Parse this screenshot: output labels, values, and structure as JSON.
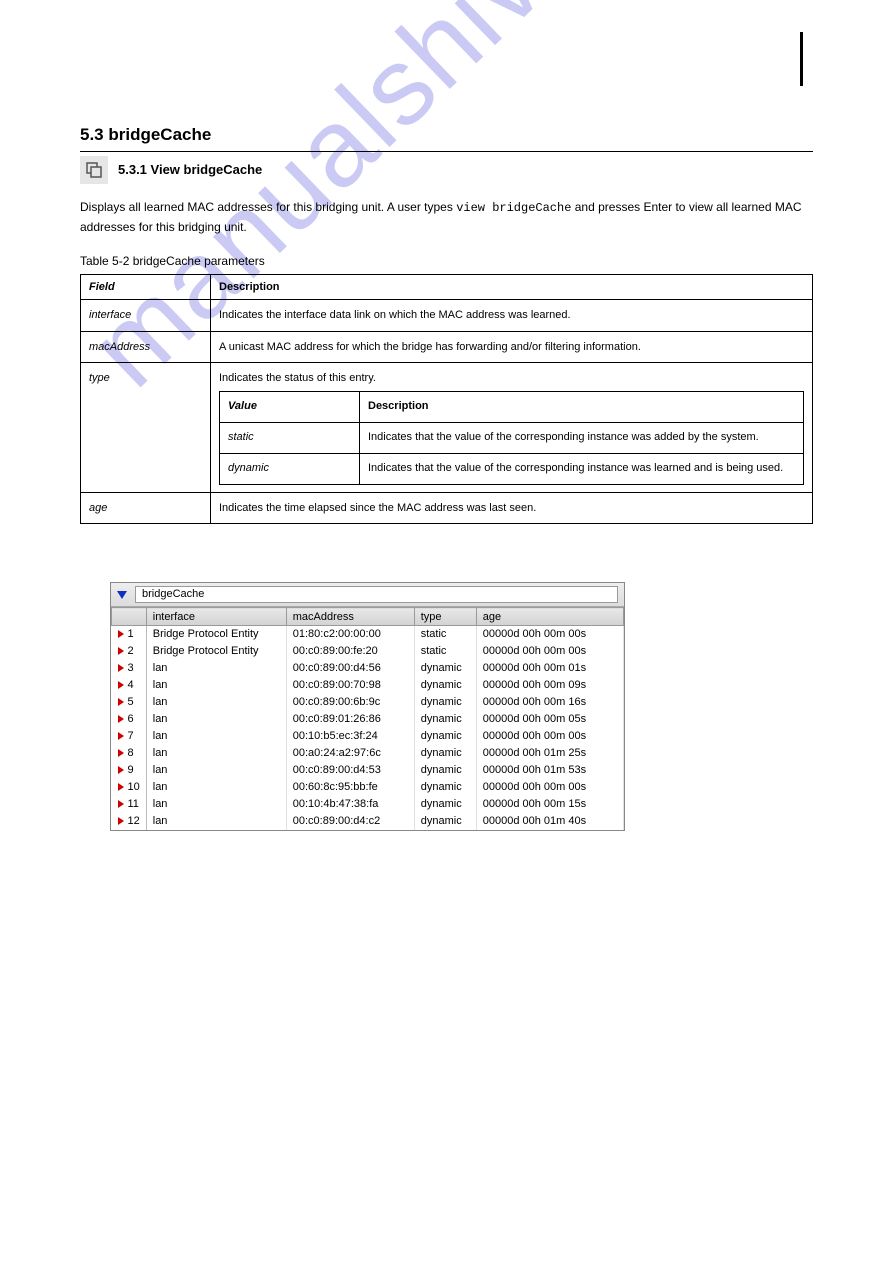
{
  "watermark": "manualshive.com",
  "heading": "5.3 bridgeCache",
  "section_title": "5.3.1 View bridgeCache",
  "body_para_prefix": "Displays all learned MAC addresses for this bridging unit. A user types ",
  "body_cmd": "view bridgeCache",
  "body_para_suffix": " and presses Enter to view all learned MAC addresses for this bridging unit.",
  "spec_caption": "Table 5-2 bridgeCache parameters",
  "spec_headers": {
    "field": "Field",
    "desc": "Description"
  },
  "spec_rows": [
    {
      "field": "interface",
      "desc": "Indicates the interface data link on which the MAC address was learned."
    },
    {
      "field": "macAddress",
      "desc": "A unicast MAC address for which the bridge has forwarding and/or filtering information."
    },
    {
      "field": "type",
      "desc_intro": "Indicates the status of this entry.",
      "nested": true
    },
    {
      "field": "age",
      "desc": "Indicates the time elapsed since the MAC address was last seen."
    }
  ],
  "nested_headers": {
    "value": "Value",
    "desc": "Description"
  },
  "nested_rows": [
    {
      "value": "static",
      "desc": "Indicates that the value of the corresponding instance was added by the system."
    },
    {
      "value": "dynamic",
      "desc": "Indicates that the value of the corresponding instance was learned and is being used."
    }
  ],
  "panel": {
    "title": "bridgeCache",
    "columns": [
      "interface",
      "macAddress",
      "type",
      "age"
    ],
    "col_widths": [
      "140px",
      "128px",
      "62px",
      "auto"
    ],
    "rows": [
      {
        "n": "1",
        "interface": "Bridge Protocol Entity",
        "mac": "01:80:c2:00:00:00",
        "type": "static",
        "age": "00000d 00h 00m 00s"
      },
      {
        "n": "2",
        "interface": "Bridge Protocol Entity",
        "mac": "00:c0:89:00:fe:20",
        "type": "static",
        "age": "00000d 00h 00m 00s"
      },
      {
        "n": "3",
        "interface": "lan",
        "mac": "00:c0:89:00:d4:56",
        "type": "dynamic",
        "age": "00000d 00h 00m 01s"
      },
      {
        "n": "4",
        "interface": "lan",
        "mac": "00:c0:89:00:70:98",
        "type": "dynamic",
        "age": "00000d 00h 00m 09s"
      },
      {
        "n": "5",
        "interface": "lan",
        "mac": "00:c0:89:00:6b:9c",
        "type": "dynamic",
        "age": "00000d 00h 00m 16s"
      },
      {
        "n": "6",
        "interface": "lan",
        "mac": "00:c0:89:01:26:86",
        "type": "dynamic",
        "age": "00000d 00h 00m 05s"
      },
      {
        "n": "7",
        "interface": "lan",
        "mac": "00:10:b5:ec:3f:24",
        "type": "dynamic",
        "age": "00000d 00h 00m 00s"
      },
      {
        "n": "8",
        "interface": "lan",
        "mac": "00:a0:24:a2:97:6c",
        "type": "dynamic",
        "age": "00000d 00h 01m 25s"
      },
      {
        "n": "9",
        "interface": "lan",
        "mac": "00:c0:89:00:d4:53",
        "type": "dynamic",
        "age": "00000d 00h 01m 53s"
      },
      {
        "n": "10",
        "interface": "lan",
        "mac": "00:60:8c:95:bb:fe",
        "type": "dynamic",
        "age": "00000d 00h 00m 00s"
      },
      {
        "n": "11",
        "interface": "lan",
        "mac": "00:10:4b:47:38:fa",
        "type": "dynamic",
        "age": "00000d 00h 00m 15s"
      },
      {
        "n": "12",
        "interface": "lan",
        "mac": "00:c0:89:00:d4:c2",
        "type": "dynamic",
        "age": "00000d 00h 01m 40s"
      }
    ]
  }
}
